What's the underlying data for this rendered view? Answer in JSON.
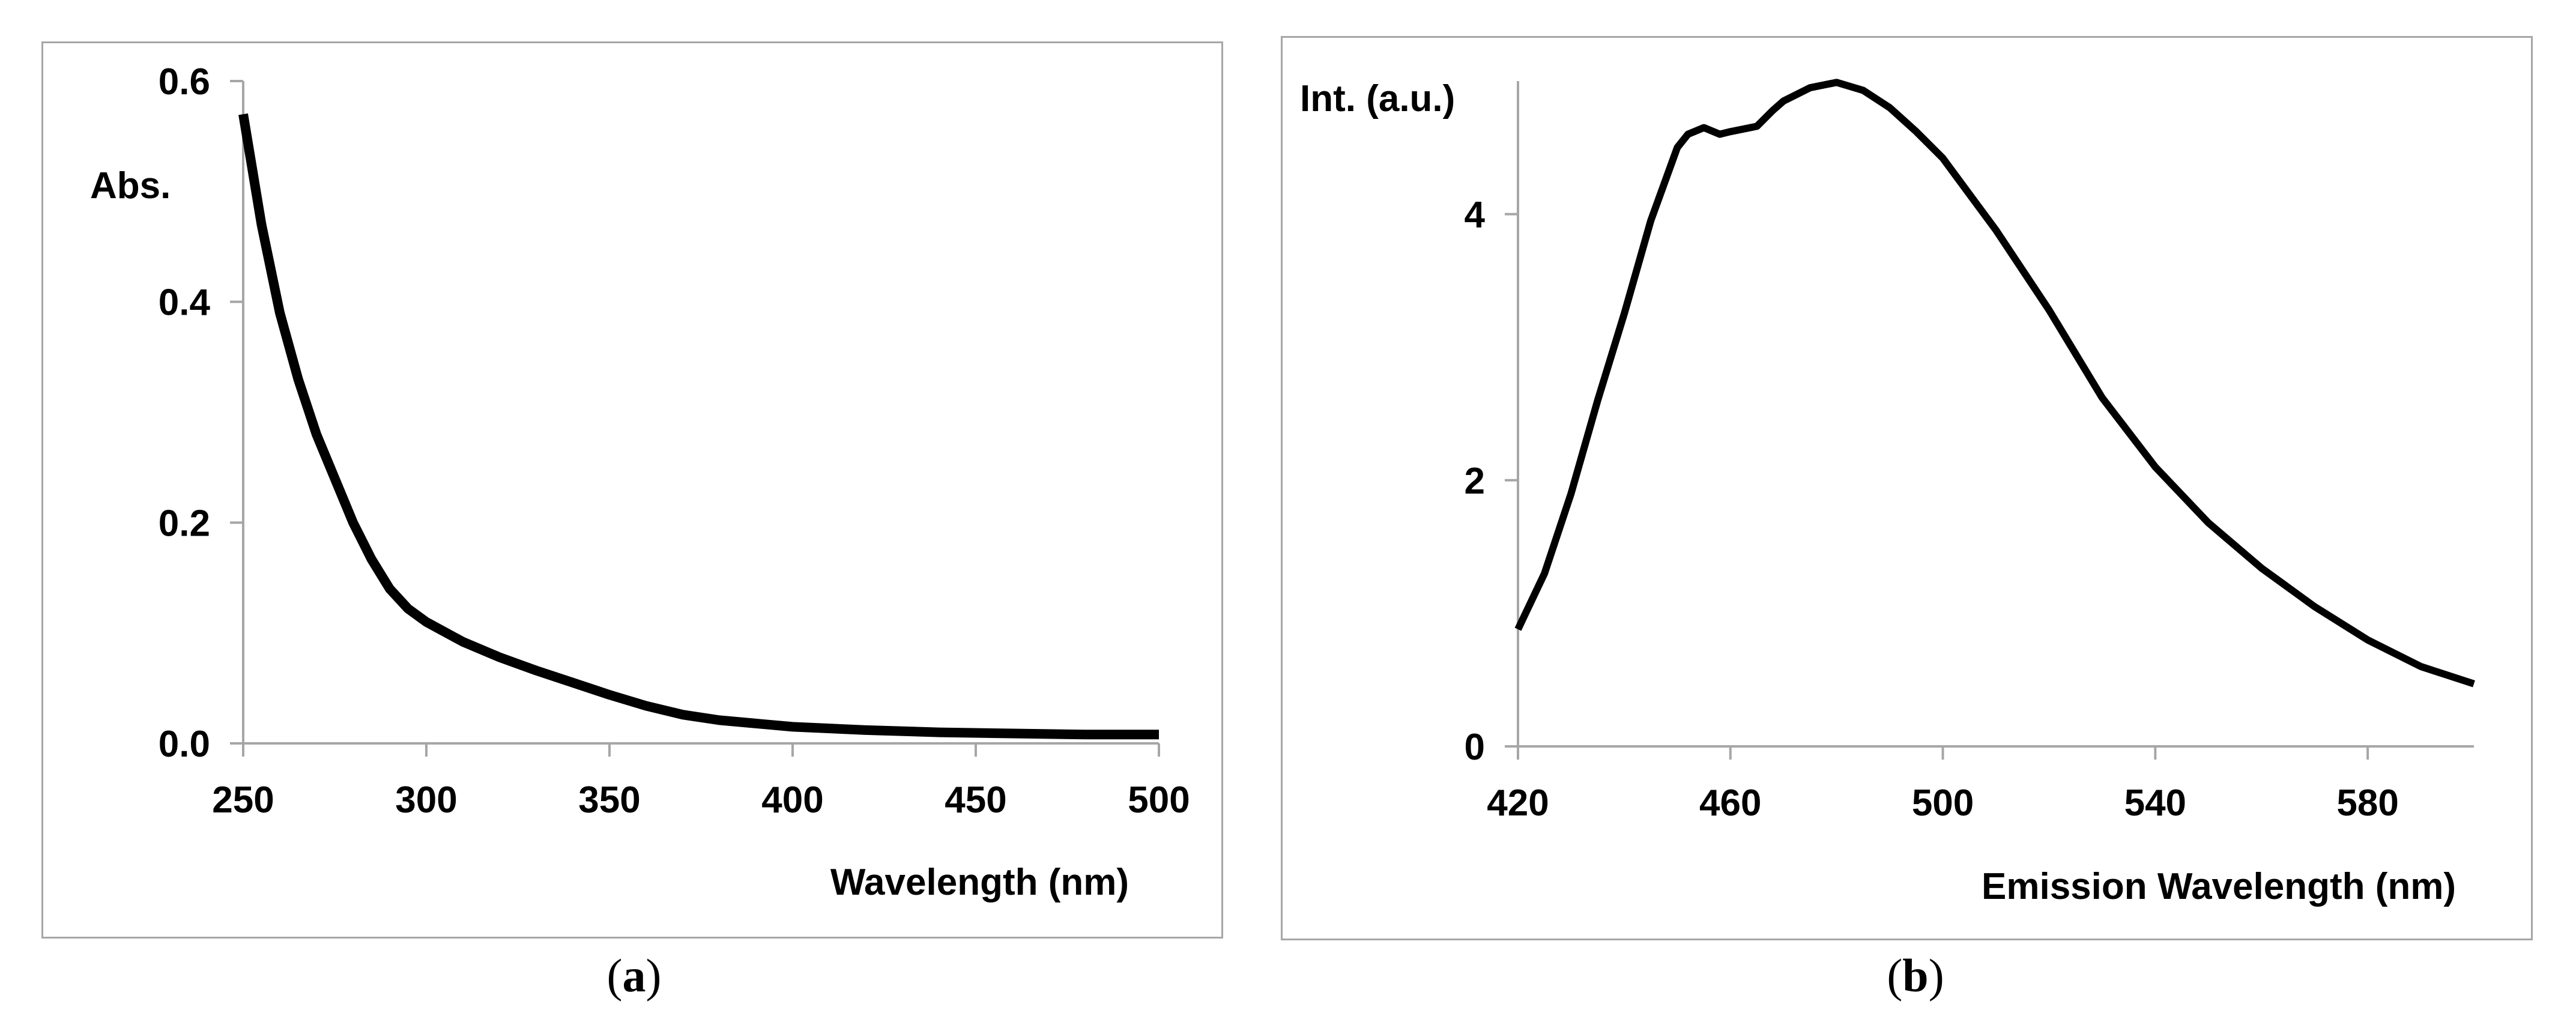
{
  "chart_data": [
    {
      "panel_label": "a",
      "type": "line",
      "ylabel": "Abs.",
      "xlabel": "Wavelength (nm)",
      "xlim": [
        250,
        500
      ],
      "ylim": [
        0,
        0.6
      ],
      "xticks": [
        "250",
        "300",
        "350",
        "400",
        "450",
        "500"
      ],
      "yticks": [
        "0.0",
        "0.2",
        "0.4",
        "0.6"
      ],
      "series": [
        {
          "name": "absorbance",
          "x": [
            250,
            255,
            260,
            265,
            270,
            275,
            280,
            285,
            290,
            295,
            300,
            310,
            320,
            330,
            340,
            350,
            360,
            370,
            380,
            390,
            400,
            420,
            440,
            460,
            480,
            500
          ],
          "y": [
            0.57,
            0.47,
            0.39,
            0.33,
            0.28,
            0.24,
            0.2,
            0.167,
            0.14,
            0.122,
            0.11,
            0.092,
            0.078,
            0.066,
            0.055,
            0.044,
            0.034,
            0.026,
            0.021,
            0.018,
            0.015,
            0.012,
            0.01,
            0.009,
            0.008,
            0.008
          ]
        }
      ]
    },
    {
      "panel_label": "b",
      "type": "line",
      "ylabel": "Int. (a.u.)",
      "xlabel": "Emission Wavelength (nm)",
      "xlim": [
        420,
        600
      ],
      "ylim": [
        0,
        5
      ],
      "xticks": [
        "420",
        "460",
        "500",
        "540",
        "580"
      ],
      "yticks": [
        "0",
        "2",
        "4"
      ],
      "series": [
        {
          "name": "emission",
          "x": [
            420,
            425,
            430,
            435,
            440,
            445,
            450,
            452,
            455,
            458,
            460,
            465,
            468,
            470,
            475,
            480,
            485,
            490,
            495,
            500,
            505,
            510,
            520,
            530,
            540,
            550,
            560,
            570,
            580,
            590,
            600
          ],
          "y": [
            0.88,
            1.3,
            1.9,
            2.6,
            3.25,
            3.95,
            4.5,
            4.6,
            4.65,
            4.6,
            4.62,
            4.66,
            4.78,
            4.85,
            4.95,
            4.99,
            4.93,
            4.8,
            4.62,
            4.42,
            4.15,
            3.88,
            3.28,
            2.62,
            2.1,
            1.68,
            1.34,
            1.05,
            0.8,
            0.6,
            0.47
          ]
        }
      ]
    }
  ]
}
